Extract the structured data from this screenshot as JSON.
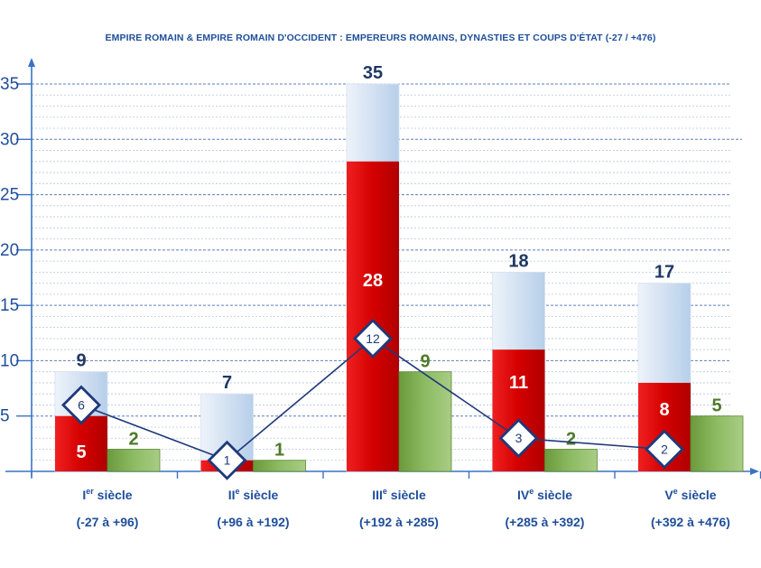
{
  "chart_data": {
    "type": "bar",
    "title": "EMPIRE ROMAIN & EMPIRE ROMAIN D'OCCIDENT : EMPEREURS ROMAINS, DYNASTIES ET COUPS D'ÉTAT (-27 / +476)",
    "categories": [
      {
        "label": "I",
        "sup": "er",
        "suffix": " siècle",
        "range": "(-27 à +96)"
      },
      {
        "label": "II",
        "sup": "e",
        "suffix": " siècle",
        "range": "(+96 à +192)"
      },
      {
        "label": "III",
        "sup": "e",
        "suffix": " siècle",
        "range": "(+192 à +285)"
      },
      {
        "label": "IV",
        "sup": "e",
        "suffix": " siècle",
        "range": "(+285 à +392)"
      },
      {
        "label": "V",
        "sup": "e",
        "suffix": " siècle",
        "range": "(+392 à +476)"
      }
    ],
    "series": [
      {
        "kind": "total-bar",
        "values": [
          9,
          7,
          35,
          18,
          17
        ],
        "color": "#c6d9f1",
        "label_color": "#1f3864"
      },
      {
        "kind": "red-bar",
        "values": [
          5,
          1,
          28,
          11,
          8
        ],
        "color": "#e00000",
        "label_color": "#ffffff"
      },
      {
        "kind": "green-bar",
        "values": [
          2,
          1,
          9,
          2,
          5
        ],
        "color": "#77a64a",
        "label_color": "#4f7a28"
      },
      {
        "kind": "diamond-line",
        "values": [
          6,
          1,
          12,
          3,
          2
        ],
        "color": "#1f3a7a"
      }
    ],
    "ylim": [
      0,
      35
    ],
    "yticks": [
      5,
      10,
      15,
      20,
      25,
      30,
      35
    ],
    "grid": true,
    "axis_color": "#3a73c4"
  }
}
